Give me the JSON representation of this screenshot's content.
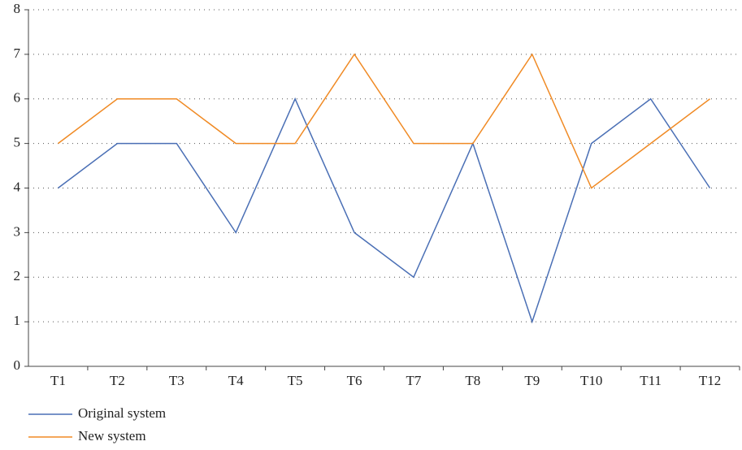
{
  "chart_data": {
    "type": "line",
    "categories": [
      "T1",
      "T2",
      "T3",
      "T4",
      "T5",
      "T6",
      "T7",
      "T8",
      "T9",
      "T10",
      "T11",
      "T12"
    ],
    "series": [
      {
        "name": "Original system",
        "color": "#4a6fb5",
        "values": [
          4,
          5,
          5,
          3,
          6,
          3,
          2,
          5,
          1,
          5,
          6,
          4
        ]
      },
      {
        "name": "New system",
        "color": "#f08a24",
        "values": [
          5,
          6,
          6,
          5,
          5,
          7,
          5,
          5,
          7,
          4,
          5,
          6
        ]
      }
    ],
    "ylim": [
      0,
      8
    ],
    "yticks": [
      0,
      1,
      2,
      3,
      4,
      5,
      6,
      7,
      8
    ],
    "grid": true,
    "legend": "bottom-left"
  }
}
